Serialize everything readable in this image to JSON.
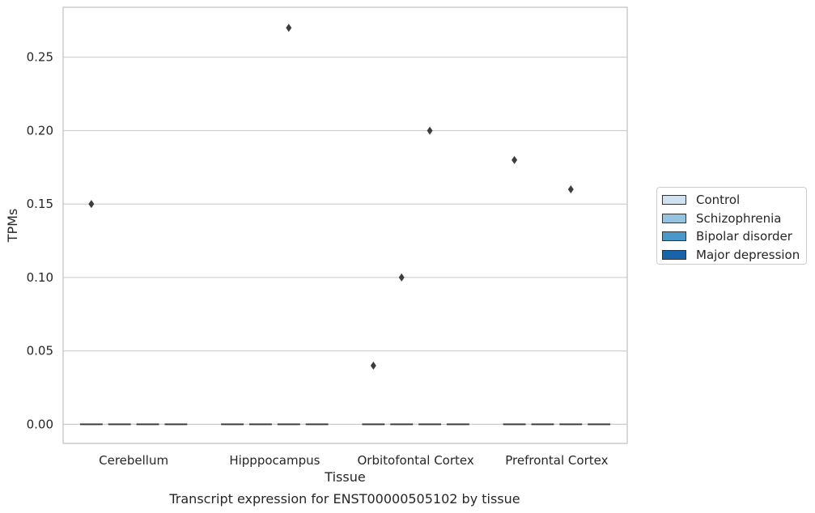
{
  "chart_data": {
    "type": "box",
    "xlabel": "Tissue",
    "ylabel": "TPMs",
    "caption": "Transcript expression for ENST00000505102 by tissue",
    "ylim": [
      -0.013,
      0.284
    ],
    "yticks": [
      "0.00",
      "0.05",
      "0.10",
      "0.15",
      "0.20",
      "0.25"
    ],
    "ytick_values": [
      0,
      0.05,
      0.1,
      0.15,
      0.2,
      0.25
    ],
    "grid": true,
    "legend_position": "right",
    "categories": [
      "Cerebellum",
      "Hipppocampus",
      "Orbitofontal Cortex",
      "Prefrontal Cortex"
    ],
    "series": [
      {
        "name": "Control",
        "color": "#d0e1f2",
        "medians": [
          0,
          0,
          0,
          0
        ],
        "outliers": [
          [
            0.15
          ],
          [],
          [
            0.04
          ],
          [
            0.18
          ]
        ]
      },
      {
        "name": "Schizophrenia",
        "color": "#94c4df",
        "medians": [
          0,
          0,
          0,
          0
        ],
        "outliers": [
          [],
          [],
          [
            0.1
          ],
          []
        ]
      },
      {
        "name": "Bipolar disorder",
        "color": "#4a98c9",
        "medians": [
          0,
          0,
          0,
          0
        ],
        "outliers": [
          [],
          [
            0.27
          ],
          [
            0.2
          ],
          [
            0.16
          ]
        ]
      },
      {
        "name": "Major depression",
        "color": "#1764ab",
        "medians": [
          0,
          0,
          0,
          0
        ],
        "outliers": [
          [],
          [],
          [],
          []
        ]
      }
    ]
  }
}
